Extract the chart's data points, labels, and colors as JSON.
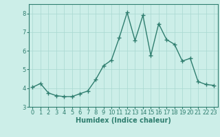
{
  "x": [
    0,
    1,
    2,
    3,
    4,
    5,
    6,
    7,
    8,
    9,
    10,
    11,
    12,
    13,
    14,
    15,
    16,
    17,
    18,
    19,
    20,
    21,
    22,
    23
  ],
  "y": [
    4.05,
    4.25,
    3.75,
    3.6,
    3.55,
    3.55,
    3.7,
    3.85,
    4.45,
    5.2,
    5.5,
    6.7,
    8.05,
    6.55,
    7.9,
    5.75,
    7.45,
    6.6,
    6.35,
    5.45,
    5.6,
    4.35,
    4.2,
    4.15
  ],
  "line_color": "#2e7d6e",
  "marker": "+",
  "marker_size": 4,
  "bg_color": "#cceee8",
  "grid_color": "#a8d8d0",
  "xlabel": "Humidex (Indice chaleur)",
  "ylim": [
    3.0,
    8.5
  ],
  "xlim": [
    -0.5,
    23.5
  ],
  "yticks": [
    3,
    4,
    5,
    6,
    7,
    8
  ],
  "xticks": [
    0,
    1,
    2,
    3,
    4,
    5,
    6,
    7,
    8,
    9,
    10,
    11,
    12,
    13,
    14,
    15,
    16,
    17,
    18,
    19,
    20,
    21,
    22,
    23
  ],
  "xlabel_fontsize": 7,
  "tick_fontsize": 6,
  "line_width": 1.0,
  "spine_color": "#2e7d6e",
  "tick_color": "#2e7d6e"
}
